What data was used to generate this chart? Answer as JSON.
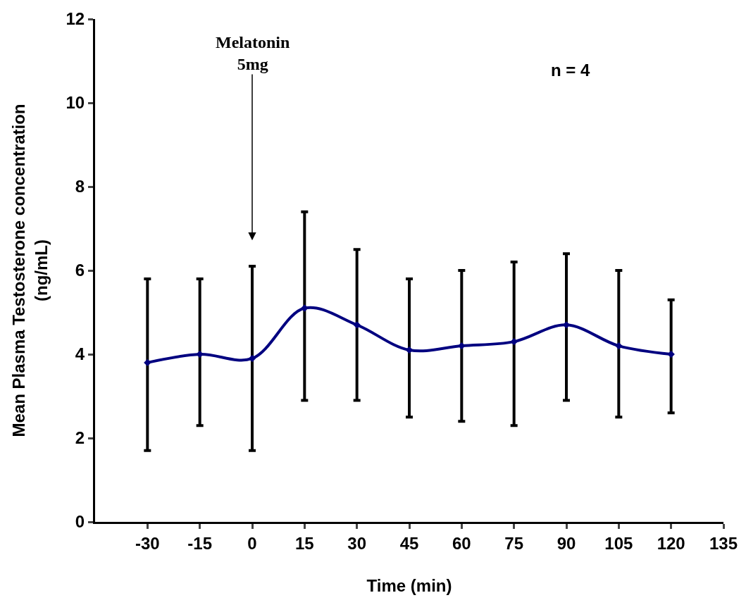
{
  "chart_data": {
    "type": "line",
    "xlabel": "Time (min)",
    "ylabel": "Mean Plasma Testosterone concentration\n(ng/mL)",
    "x": [
      -30,
      -15,
      0,
      15,
      30,
      45,
      60,
      75,
      90,
      105,
      120
    ],
    "series": [
      {
        "color": "#000080",
        "values": [
          3.8,
          4.0,
          3.9,
          5.1,
          4.7,
          4.1,
          4.2,
          4.3,
          4.7,
          4.2,
          4.0
        ],
        "errors": [
          [
            1.7,
            5.8
          ],
          [
            2.3,
            5.8
          ],
          [
            1.7,
            6.1
          ],
          [
            2.9,
            7.4
          ],
          [
            2.9,
            6.5
          ],
          [
            2.5,
            5.8
          ],
          [
            2.4,
            6.0
          ],
          [
            2.3,
            6.2
          ],
          [
            2.9,
            6.4
          ],
          [
            2.5,
            6.0
          ],
          [
            2.6,
            5.3
          ]
        ]
      }
    ],
    "xlim": [
      -45,
      135
    ],
    "xticks": [
      -30,
      -15,
      0,
      15,
      30,
      45,
      60,
      75,
      90,
      105,
      120,
      135
    ],
    "ylim": [
      0,
      12
    ],
    "yticks": [
      0,
      2,
      4,
      6,
      8,
      10,
      12
    ],
    "marker": "diamond",
    "line_style": "solid",
    "annotations": [
      "Melatonin\n5mg",
      "n = 4"
    ]
  }
}
